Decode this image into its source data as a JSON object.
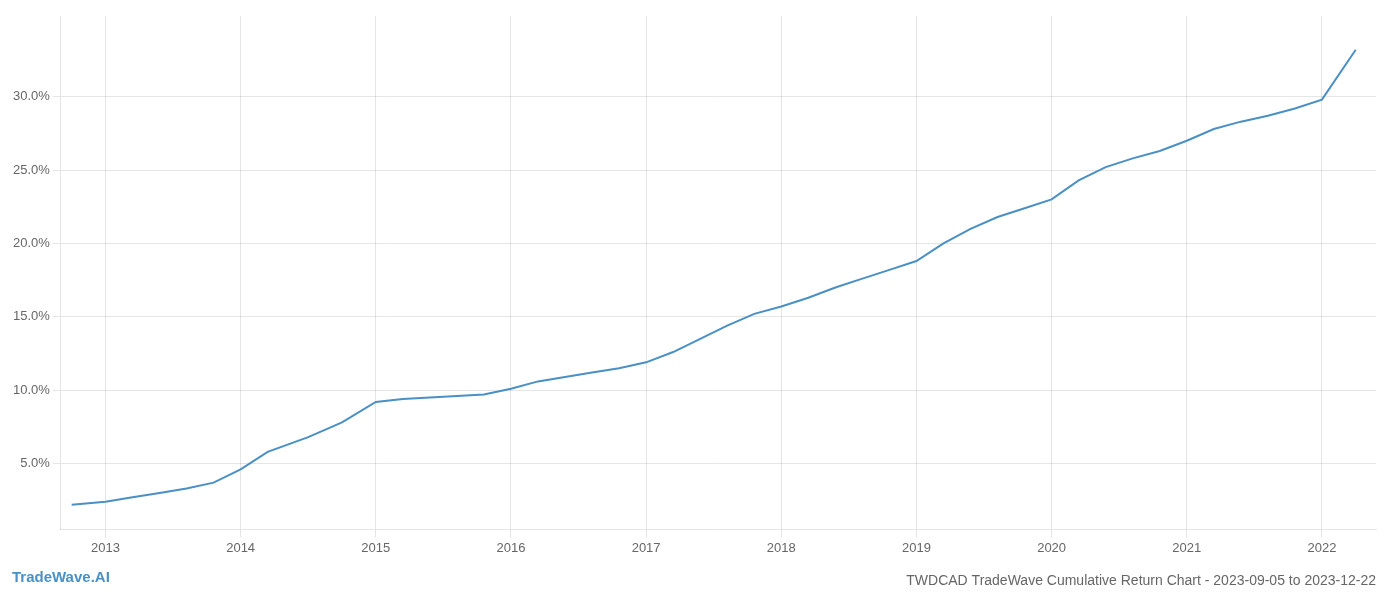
{
  "chart_data": {
    "type": "line",
    "title": "TWDCAD TradeWave Cumulative Return Chart - 2023-09-05 to 2023-12-22",
    "annotations": [
      "TradeWave.AI"
    ],
    "x": [
      2012.75,
      2013.0,
      2013.2,
      2013.4,
      2013.6,
      2013.8,
      2014.0,
      2014.2,
      2014.5,
      2014.75,
      2015.0,
      2015.2,
      2015.4,
      2015.6,
      2015.8,
      2016.0,
      2016.2,
      2016.4,
      2016.6,
      2016.8,
      2017.0,
      2017.2,
      2017.4,
      2017.6,
      2017.8,
      2018.0,
      2018.2,
      2018.4,
      2018.6,
      2018.8,
      2019.0,
      2019.2,
      2019.4,
      2019.6,
      2019.8,
      2020.0,
      2020.2,
      2020.4,
      2020.6,
      2020.8,
      2021.0,
      2021.2,
      2021.4,
      2021.6,
      2021.8,
      2022.0,
      2022.25
    ],
    "values": [
      0.022,
      0.024,
      0.027,
      0.03,
      0.033,
      0.037,
      0.046,
      0.058,
      0.068,
      0.078,
      0.092,
      0.094,
      0.095,
      0.096,
      0.097,
      0.101,
      0.106,
      0.109,
      0.112,
      0.115,
      0.119,
      0.126,
      0.135,
      0.144,
      0.152,
      0.157,
      0.163,
      0.17,
      0.176,
      0.182,
      0.188,
      0.2,
      0.21,
      0.218,
      0.224,
      0.23,
      0.243,
      0.252,
      0.258,
      0.263,
      0.27,
      0.278,
      0.283,
      0.287,
      0.292,
      0.298,
      0.332
    ],
    "color": "#4a90c4",
    "xlim": [
      2012.67,
      2022.4
    ],
    "xticks": [
      2013,
      2014,
      2015,
      2016,
      2017,
      2018,
      2019,
      2020,
      2021,
      2022
    ],
    "ylim": [
      0.005,
      0.355
    ],
    "yticks": [
      {
        "value": 0.05,
        "label": "5.0%"
      },
      {
        "value": 0.1,
        "label": "10.0%"
      },
      {
        "value": 0.15,
        "label": "15.0%"
      },
      {
        "value": 0.2,
        "label": "20.0%"
      },
      {
        "value": 0.25,
        "label": "25.0%"
      },
      {
        "value": 0.3,
        "label": "30.0%"
      }
    ],
    "grid": true
  }
}
